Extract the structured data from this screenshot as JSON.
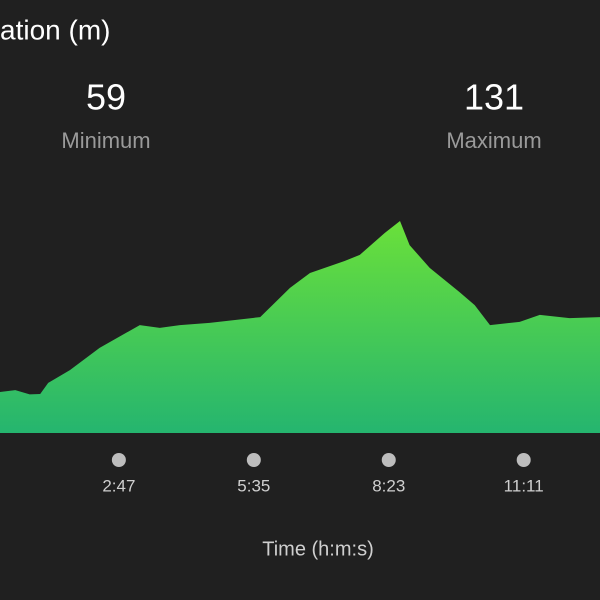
{
  "header": {
    "title": "ation (m)"
  },
  "stats": [
    {
      "value": 59,
      "label": "Minimum"
    },
    {
      "value": 131,
      "label": "Maximum"
    }
  ],
  "chart_data": {
    "type": "area",
    "x": [
      19,
      38,
      56,
      69,
      79,
      106,
      143,
      193,
      218,
      243,
      280,
      343,
      380,
      405,
      448,
      467,
      498,
      517,
      529,
      554,
      591,
      610,
      629,
      666,
      691,
      728,
      766
    ],
    "values": [
      60,
      60.8,
      59,
      59.2,
      63.8,
      69.1,
      78.3,
      87.8,
      86.6,
      87.8,
      88.7,
      91.1,
      103.2,
      109.4,
      114.4,
      116.9,
      126,
      131,
      121,
      111.5,
      101.5,
      96.1,
      87.8,
      89.1,
      92,
      90.7,
      91.1
    ],
    "gradient": [
      "#6ae03a",
      "#25b56f"
    ],
    "xlim": [
      19,
      766
    ],
    "ylim": [
      43,
      148
    ],
    "xticks": [
      {
        "value": 167,
        "label": "2:47"
      },
      {
        "value": 335,
        "label": "5:35"
      },
      {
        "value": 503,
        "label": "8:23"
      },
      {
        "value": 671,
        "label": "11:11"
      }
    ],
    "xlabel": "Time (h:m:s)"
  }
}
